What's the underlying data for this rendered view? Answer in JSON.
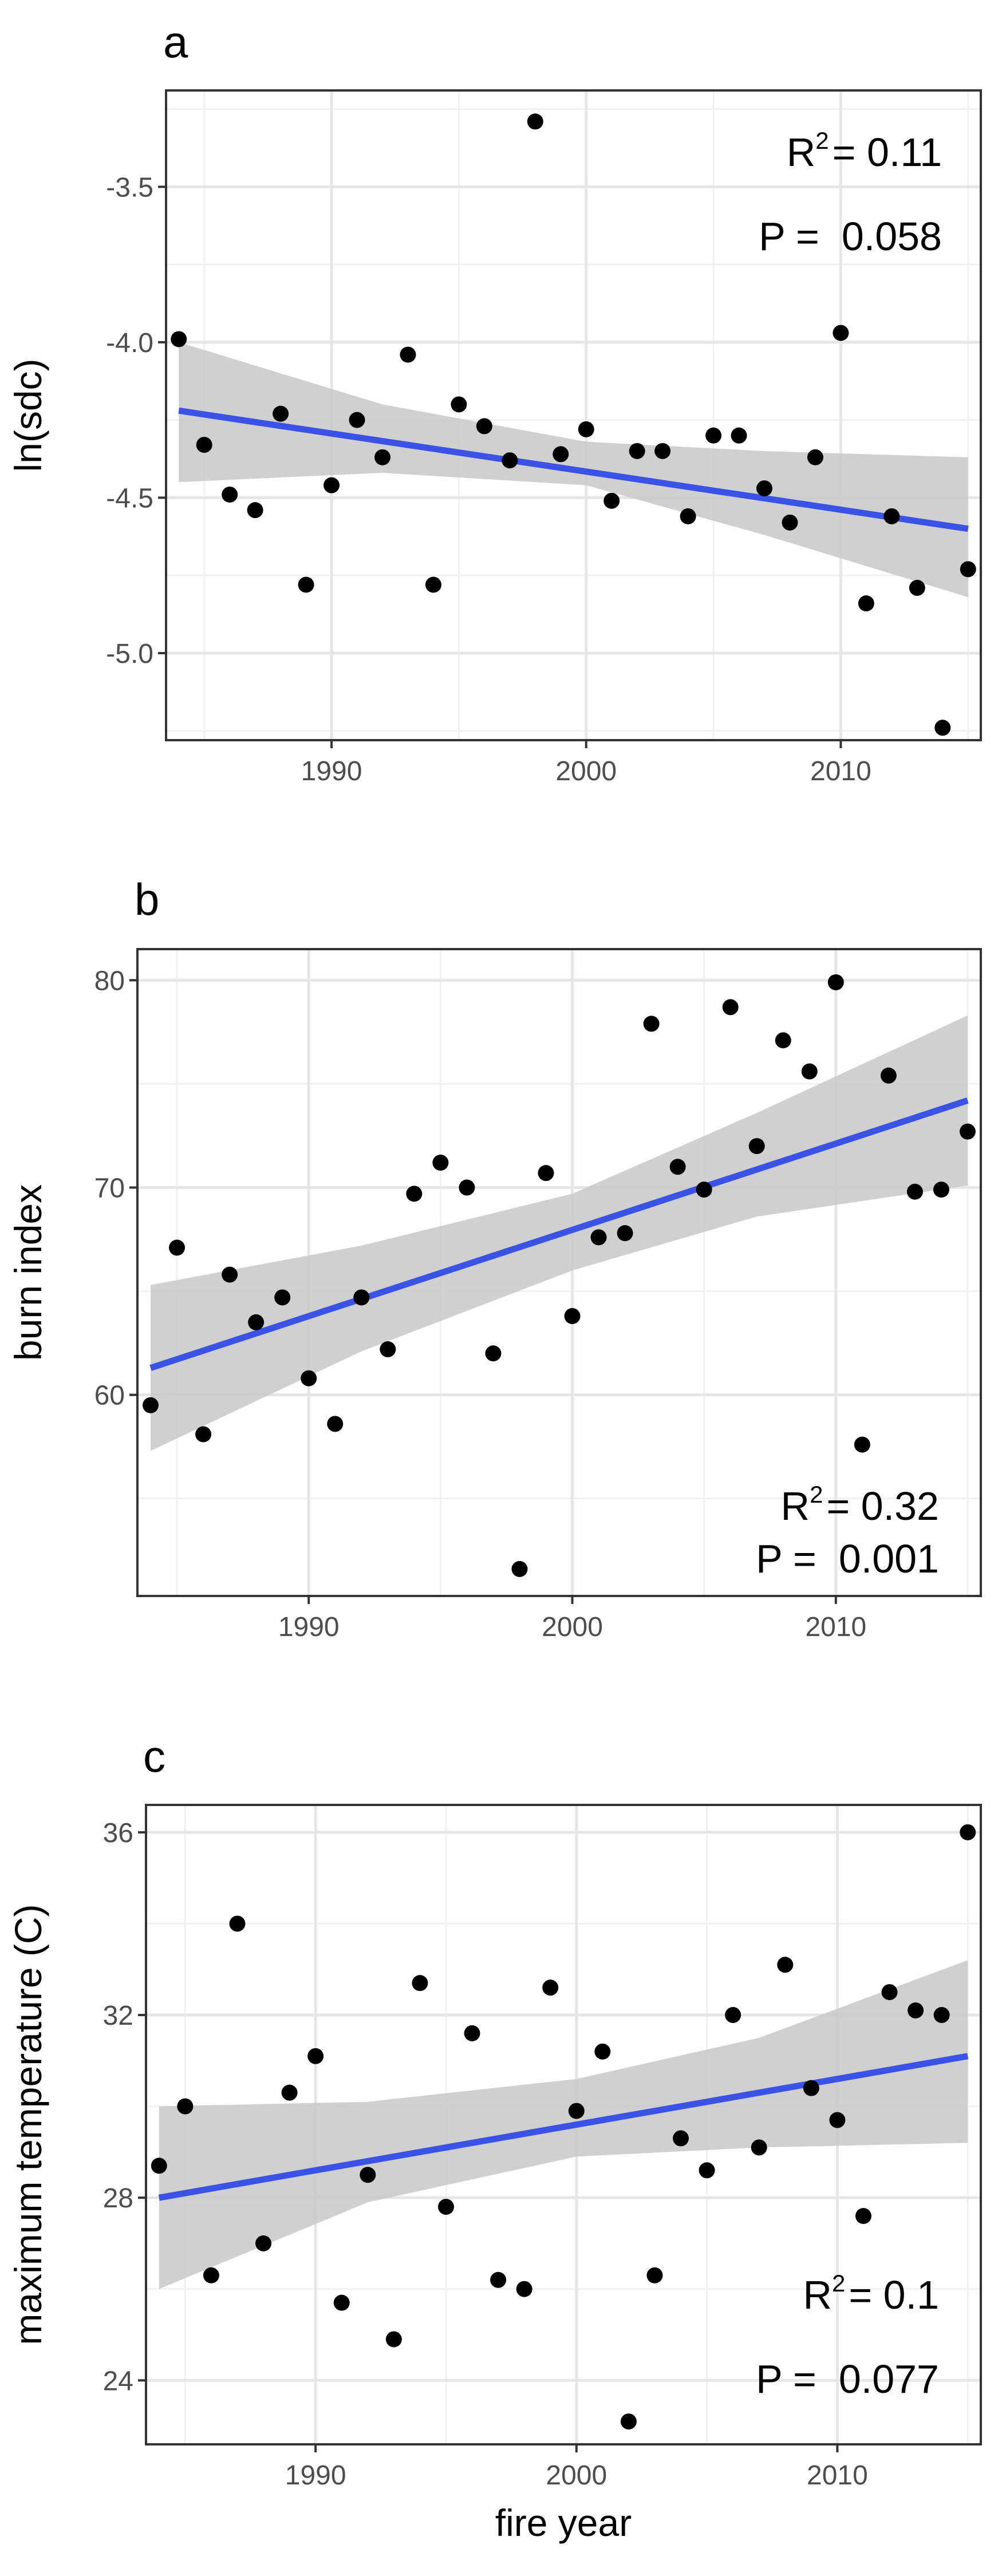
{
  "chart_data": [
    {
      "type": "scatter",
      "panel": "a",
      "xlabel": "",
      "ylabel": "ln(sdc)",
      "xlim": [
        1983.5,
        2015.5
      ],
      "ylim": [
        -5.28,
        -3.19
      ],
      "xticks": [
        1990,
        2000,
        2010
      ],
      "xtick_labels": [
        "1990",
        "2000",
        "2010"
      ],
      "yticks": [
        -3.5,
        -4.0,
        -4.5,
        -5.0
      ],
      "ytick_labels": [
        "-3.5",
        "-4.0",
        "-4.5",
        "-5.0"
      ],
      "r2_prefix": "R",
      "r2_sup": "2",
      "r2_value": "= 0.11",
      "p_label": "P =  0.058",
      "legend_position": "top-right",
      "points": [
        {
          "x": 1984,
          "y": -3.99
        },
        {
          "x": 1985,
          "y": -4.33
        },
        {
          "x": 1986,
          "y": -4.49
        },
        {
          "x": 1987,
          "y": -4.54
        },
        {
          "x": 1988,
          "y": -4.23
        },
        {
          "x": 1989,
          "y": -4.78
        },
        {
          "x": 1990,
          "y": -4.46
        },
        {
          "x": 1991,
          "y": -4.25
        },
        {
          "x": 1992,
          "y": -4.37
        },
        {
          "x": 1993,
          "y": -4.04
        },
        {
          "x": 1994,
          "y": -4.78
        },
        {
          "x": 1995,
          "y": -4.2
        },
        {
          "x": 1996,
          "y": -4.27
        },
        {
          "x": 1997,
          "y": -4.38
        },
        {
          "x": 1998,
          "y": -3.29
        },
        {
          "x": 1999,
          "y": -4.36
        },
        {
          "x": 2000,
          "y": -4.28
        },
        {
          "x": 2001,
          "y": -4.51
        },
        {
          "x": 2002,
          "y": -4.35
        },
        {
          "x": 2003,
          "y": -4.35
        },
        {
          "x": 2004,
          "y": -4.56
        },
        {
          "x": 2005,
          "y": -4.3
        },
        {
          "x": 2006,
          "y": -4.3
        },
        {
          "x": 2007,
          "y": -4.47
        },
        {
          "x": 2008,
          "y": -4.58
        },
        {
          "x": 2009,
          "y": -4.37
        },
        {
          "x": 2010,
          "y": -3.97
        },
        {
          "x": 2011,
          "y": -4.84
        },
        {
          "x": 2012,
          "y": -4.56
        },
        {
          "x": 2013,
          "y": -4.79
        },
        {
          "x": 2014,
          "y": -5.24
        },
        {
          "x": 2015,
          "y": -4.73
        }
      ],
      "fit": {
        "x": [
          1984,
          2015
        ],
        "y": [
          -4.22,
          -4.6
        ]
      },
      "ci_band": {
        "x": [
          1984,
          1992,
          2000,
          2007,
          2015
        ],
        "lower": [
          -4.45,
          -4.42,
          -4.46,
          -4.62,
          -4.82
        ],
        "upper": [
          -4.0,
          -4.2,
          -4.32,
          -4.35,
          -4.37
        ]
      }
    },
    {
      "type": "scatter",
      "panel": "b",
      "xlabel": "",
      "ylabel": "burn index",
      "xlim": [
        1983.5,
        2015.5
      ],
      "ylim": [
        50.3,
        81.5
      ],
      "xticks": [
        1990,
        2000,
        2010
      ],
      "xtick_labels": [
        "1990",
        "2000",
        "2010"
      ],
      "yticks": [
        80,
        70,
        60
      ],
      "ytick_labels": [
        "80",
        "70",
        "60"
      ],
      "r2_prefix": "R",
      "r2_sup": "2",
      "r2_value": "= 0.32",
      "p_label": "P =  0.001",
      "legend_position": "bottom-right",
      "points": [
        {
          "x": 1984,
          "y": 59.5
        },
        {
          "x": 1985,
          "y": 67.1
        },
        {
          "x": 1986,
          "y": 58.1
        },
        {
          "x": 1987,
          "y": 65.8
        },
        {
          "x": 1988,
          "y": 63.5
        },
        {
          "x": 1989,
          "y": 64.7
        },
        {
          "x": 1990,
          "y": 60.8
        },
        {
          "x": 1991,
          "y": 58.6
        },
        {
          "x": 1992,
          "y": 64.7
        },
        {
          "x": 1993,
          "y": 62.2
        },
        {
          "x": 1994,
          "y": 69.7
        },
        {
          "x": 1995,
          "y": 71.2
        },
        {
          "x": 1996,
          "y": 70.0
        },
        {
          "x": 1997,
          "y": 62.0
        },
        {
          "x": 1998,
          "y": 51.6
        },
        {
          "x": 1999,
          "y": 70.7
        },
        {
          "x": 2000,
          "y": 63.8
        },
        {
          "x": 2001,
          "y": 67.6
        },
        {
          "x": 2002,
          "y": 67.8
        },
        {
          "x": 2003,
          "y": 77.9
        },
        {
          "x": 2004,
          "y": 71.0
        },
        {
          "x": 2005,
          "y": 69.9
        },
        {
          "x": 2006,
          "y": 78.7
        },
        {
          "x": 2007,
          "y": 72.0
        },
        {
          "x": 2008,
          "y": 77.1
        },
        {
          "x": 2009,
          "y": 75.6
        },
        {
          "x": 2010,
          "y": 79.9
        },
        {
          "x": 2011,
          "y": 57.6
        },
        {
          "x": 2012,
          "y": 75.4
        },
        {
          "x": 2013,
          "y": 69.8
        },
        {
          "x": 2014,
          "y": 69.9
        },
        {
          "x": 2015,
          "y": 72.7
        }
      ],
      "fit": {
        "x": [
          1984,
          2015
        ],
        "y": [
          61.3,
          74.2
        ]
      },
      "ci_band": {
        "x": [
          1984,
          1992,
          2000,
          2007,
          2015
        ],
        "lower": [
          57.3,
          62.1,
          66.0,
          68.6,
          70.1
        ],
        "upper": [
          65.3,
          67.2,
          69.7,
          73.6,
          78.3
        ]
      }
    },
    {
      "type": "scatter",
      "panel": "c",
      "xlabel": "fire year",
      "ylabel": "maximum temperature (C)",
      "xlim": [
        1983.5,
        2015.5
      ],
      "ylim": [
        22.6,
        36.6
      ],
      "xticks": [
        1990,
        2000,
        2010
      ],
      "xtick_labels": [
        "1990",
        "2000",
        "2010"
      ],
      "yticks": [
        36,
        32,
        28,
        24
      ],
      "ytick_labels": [
        "36",
        "32",
        "28",
        "24"
      ],
      "r2_prefix": "R",
      "r2_sup": "2",
      "r2_value": "= 0.1",
      "p_label": "P =  0.077",
      "legend_position": "bottom-right",
      "points": [
        {
          "x": 1984,
          "y": 28.7
        },
        {
          "x": 1985,
          "y": 30.0
        },
        {
          "x": 1986,
          "y": 26.3
        },
        {
          "x": 1987,
          "y": 34.0
        },
        {
          "x": 1988,
          "y": 27.0
        },
        {
          "x": 1989,
          "y": 30.3
        },
        {
          "x": 1990,
          "y": 31.1
        },
        {
          "x": 1991,
          "y": 25.7
        },
        {
          "x": 1992,
          "y": 28.5
        },
        {
          "x": 1993,
          "y": 24.9
        },
        {
          "x": 1994,
          "y": 32.7
        },
        {
          "x": 1995,
          "y": 27.8
        },
        {
          "x": 1996,
          "y": 31.6
        },
        {
          "x": 1997,
          "y": 26.2
        },
        {
          "x": 1998,
          "y": 26.0
        },
        {
          "x": 1999,
          "y": 32.6
        },
        {
          "x": 2000,
          "y": 29.9
        },
        {
          "x": 2001,
          "y": 31.2
        },
        {
          "x": 2002,
          "y": 23.1
        },
        {
          "x": 2003,
          "y": 26.3
        },
        {
          "x": 2004,
          "y": 29.3
        },
        {
          "x": 2005,
          "y": 28.6
        },
        {
          "x": 2006,
          "y": 32.0
        },
        {
          "x": 2007,
          "y": 29.1
        },
        {
          "x": 2008,
          "y": 33.1
        },
        {
          "x": 2009,
          "y": 30.4
        },
        {
          "x": 2010,
          "y": 29.7
        },
        {
          "x": 2011,
          "y": 27.6
        },
        {
          "x": 2012,
          "y": 32.5
        },
        {
          "x": 2013,
          "y": 32.1
        },
        {
          "x": 2014,
          "y": 32.0
        },
        {
          "x": 2015,
          "y": 36.0
        }
      ],
      "fit": {
        "x": [
          1984,
          2015
        ],
        "y": [
          28.0,
          31.1
        ]
      },
      "ci_band": {
        "x": [
          1984,
          1992,
          2000,
          2007,
          2015
        ],
        "lower": [
          26.0,
          27.9,
          28.9,
          29.1,
          29.2
        ],
        "upper": [
          30.0,
          30.1,
          30.6,
          31.5,
          33.2
        ]
      }
    }
  ]
}
